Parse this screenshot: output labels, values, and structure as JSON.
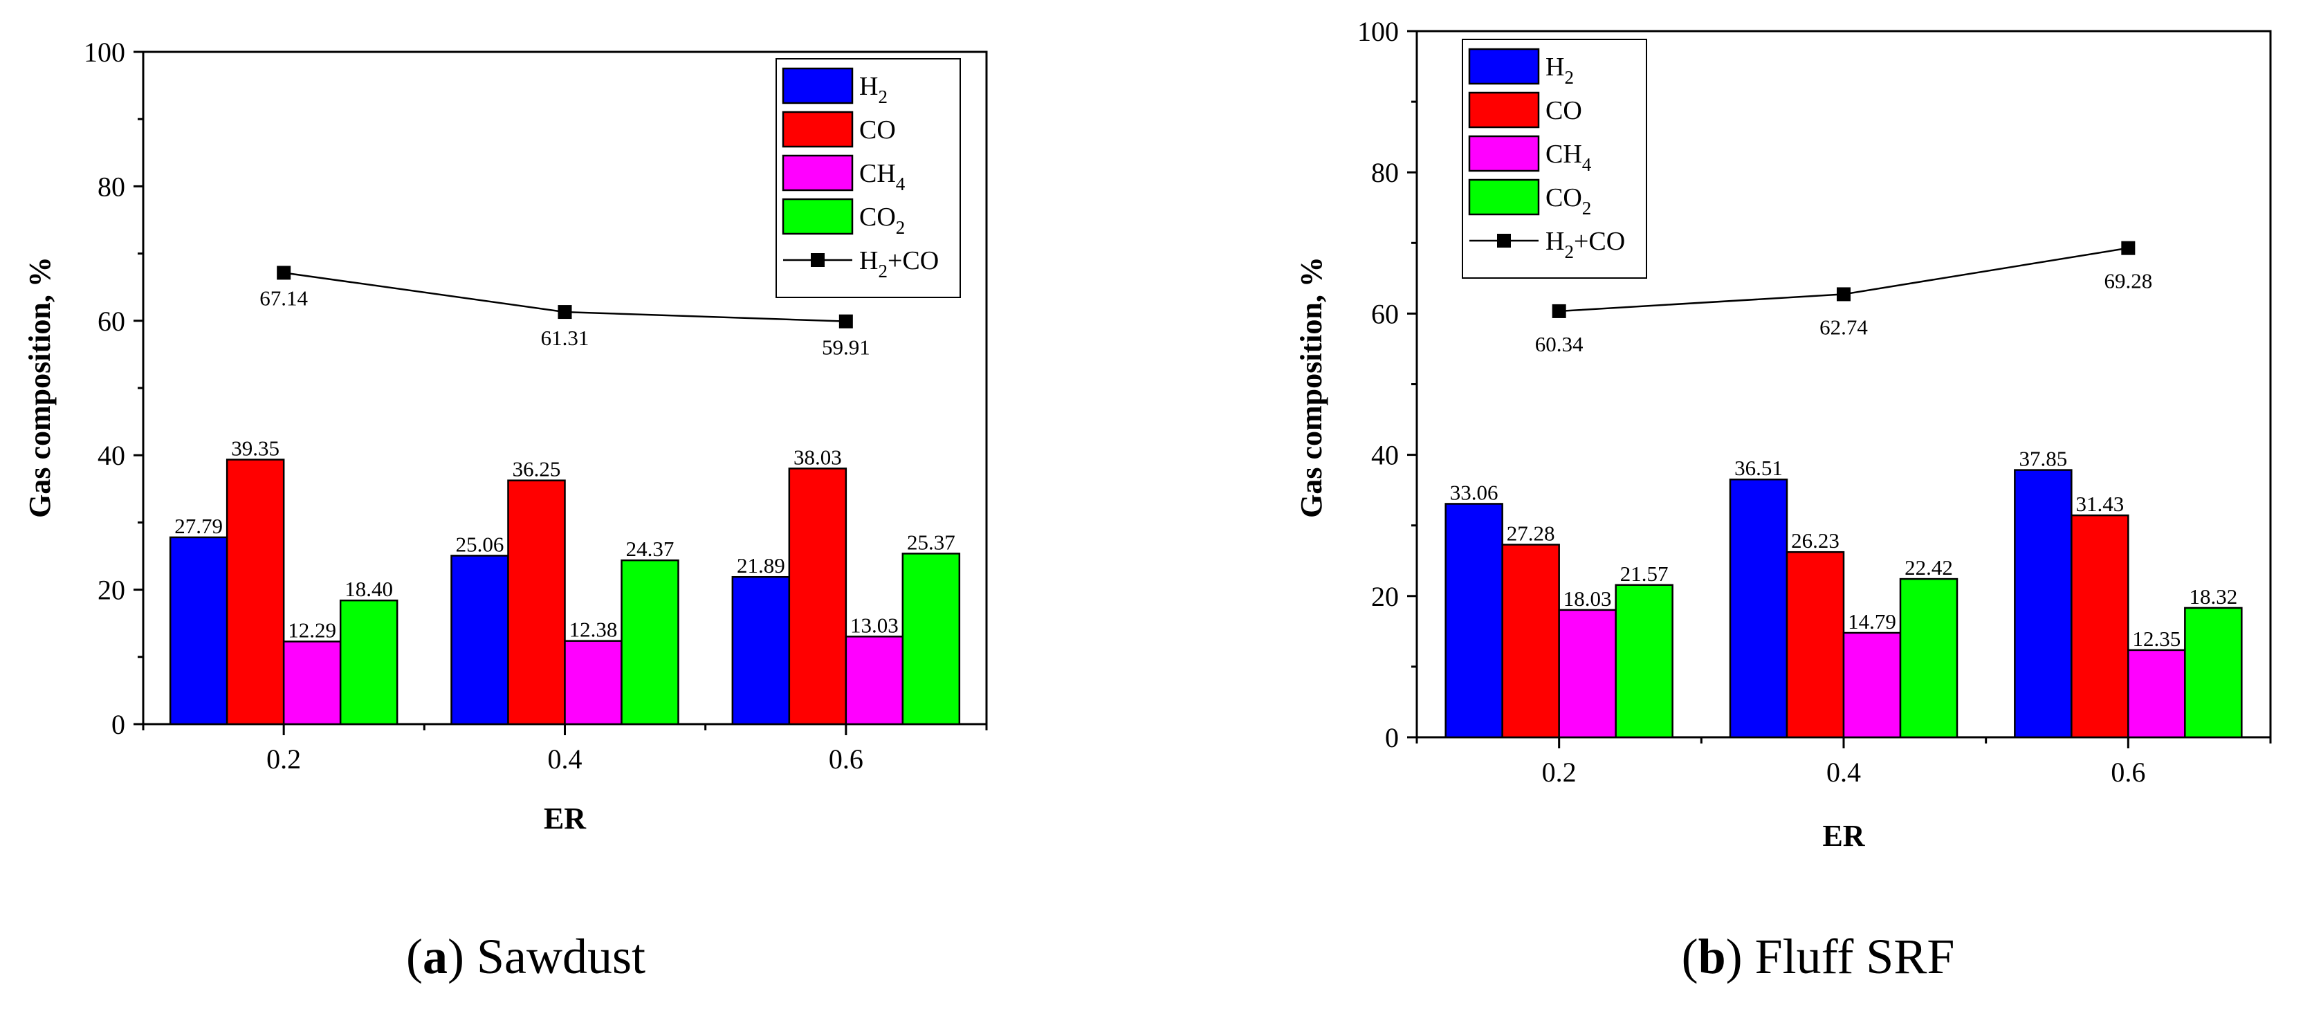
{
  "chart_data": [
    {
      "type": "bar",
      "caption": {
        "letter": "a",
        "text": "Sawdust"
      },
      "xlabel": "ER",
      "ylabel": "Gas composition, %",
      "ylim": [
        0,
        100
      ],
      "yticks": [
        "0",
        "20",
        "40",
        "60",
        "80",
        "100"
      ],
      "categories": [
        "0.2",
        "0.4",
        "0.6"
      ],
      "series": [
        {
          "name": "H2",
          "legend_main": "H",
          "legend_sub": "2",
          "color": "#0000ff",
          "values": [
            27.79,
            25.06,
            21.89
          ],
          "labels": [
            "27.79",
            "25.06",
            "21.89"
          ]
        },
        {
          "name": "CO",
          "legend_main": "CO",
          "legend_sub": "",
          "color": "#ff0000",
          "values": [
            39.35,
            36.25,
            38.03
          ],
          "labels": [
            "39.35",
            "36.25",
            "38.03"
          ]
        },
        {
          "name": "CH4",
          "legend_main": "CH",
          "legend_sub": "4",
          "color": "#ff00ff",
          "values": [
            12.29,
            12.38,
            13.03
          ],
          "labels": [
            "12.29",
            "12.38",
            "13.03"
          ]
        },
        {
          "name": "CO2",
          "legend_main": "CO",
          "legend_sub": "2",
          "color": "#00ff00",
          "values": [
            18.4,
            24.37,
            25.37
          ],
          "labels": [
            "18.40",
            "24.37",
            "25.37"
          ]
        }
      ],
      "line_series": {
        "name": "H2+CO",
        "legend_a": "H",
        "legend_sub": "2",
        "legend_b": "+CO",
        "color": "#000000",
        "values": [
          67.14,
          61.31,
          59.91
        ],
        "labels": [
          "67.14",
          "61.31",
          "59.91"
        ]
      },
      "legend_position": "top-right"
    },
    {
      "type": "bar",
      "caption": {
        "letter": "b",
        "text": "Fluff SRF"
      },
      "xlabel": "ER",
      "ylabel": "Gas composition, %",
      "ylim": [
        0,
        100
      ],
      "yticks": [
        "0",
        "20",
        "40",
        "60",
        "80",
        "100"
      ],
      "categories": [
        "0.2",
        "0.4",
        "0.6"
      ],
      "series": [
        {
          "name": "H2",
          "legend_main": "H",
          "legend_sub": "2",
          "color": "#0000ff",
          "values": [
            33.06,
            36.51,
            37.85
          ],
          "labels": [
            "33.06",
            "36.51",
            "37.85"
          ]
        },
        {
          "name": "CO",
          "legend_main": "CO",
          "legend_sub": "",
          "color": "#ff0000",
          "values": [
            27.28,
            26.23,
            31.43
          ],
          "labels": [
            "27.28",
            "26.23",
            "31.43"
          ]
        },
        {
          "name": "CH4",
          "legend_main": "CH",
          "legend_sub": "4",
          "color": "#ff00ff",
          "values": [
            18.03,
            14.79,
            12.35
          ],
          "labels": [
            "18.03",
            "14.79",
            "12.35"
          ]
        },
        {
          "name": "CO2",
          "legend_main": "CO",
          "legend_sub": "2",
          "color": "#00ff00",
          "values": [
            21.57,
            22.42,
            18.32
          ],
          "labels": [
            "21.57",
            "22.42",
            "18.32"
          ]
        }
      ],
      "line_series": {
        "name": "H2+CO",
        "legend_a": "H",
        "legend_sub": "2",
        "legend_b": "+CO",
        "color": "#000000",
        "values": [
          60.34,
          62.74,
          69.28
        ],
        "labels": [
          "60.34",
          "62.74",
          "69.28"
        ]
      },
      "legend_position": "top-left"
    }
  ]
}
